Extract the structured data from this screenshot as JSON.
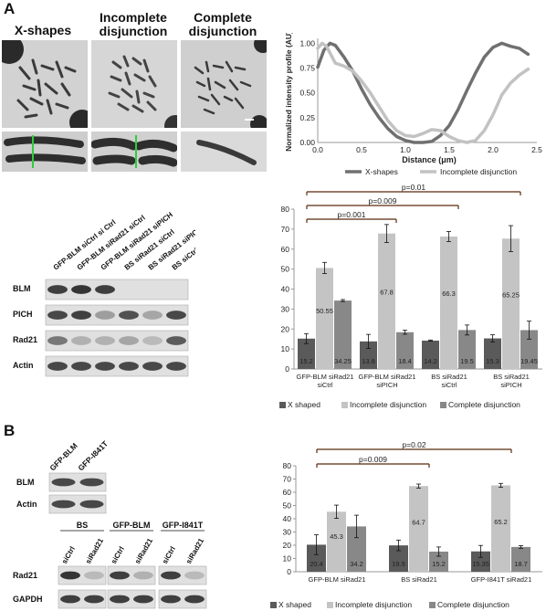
{
  "panel_a_letter": "A",
  "panel_b_letter": "B",
  "micrograph_titles": [
    "X-shapes",
    "Incomplete disjunction",
    "Complete disjunction"
  ],
  "blot_a": {
    "lanes": [
      "GFP-BLM siCtrl si Ctrl",
      "GFP-BLM siRad21 siCtrl",
      "GFP-BLM siRad21 siPICH",
      "BS siRad21 siCtrl",
      "BS siRad21 siPICH",
      "BS siCtrl siCtrl"
    ],
    "rows": [
      "BLM",
      "PICH",
      "Rad21",
      "Actin"
    ]
  },
  "blot_b_top": {
    "lanes": [
      "GFP-BLM",
      "GFP-I841T"
    ],
    "rows": [
      "BLM",
      "Actin"
    ]
  },
  "blot_b_bottom": {
    "groups": [
      "BS",
      "GFP-BLM",
      "GFP-I841T"
    ],
    "lanes": [
      "siCtrl",
      "siRad21",
      "siCtrl",
      "siRad21",
      "siCtrl",
      "siRad21"
    ],
    "rows": [
      "Rad21",
      "GAPDH"
    ]
  },
  "colors": {
    "x_shaped": "#5a5a5a",
    "incomplete": "#c4c4c4",
    "complete": "#888888",
    "bracket": "#5b2a0f"
  },
  "chart_data": [
    {
      "type": "line",
      "xlabel": "Distance (μm)",
      "ylabel": "Normalized intensity profile (AU)",
      "xlim": [
        0,
        2.5
      ],
      "ylim": [
        0,
        1.05
      ],
      "xticks": [
        "0.0",
        "0.5",
        "1.0",
        "1.5",
        "2.0",
        "2.5"
      ],
      "yticks": [
        "0.00",
        "0.25",
        "0.50",
        "0.75",
        "1.00"
      ],
      "legend_position": "bottom",
      "series": [
        {
          "name": "X-shapes",
          "color": "#707070",
          "x": [
            0,
            0.07,
            0.14,
            0.2,
            0.3,
            0.4,
            0.5,
            0.6,
            0.7,
            0.8,
            0.9,
            1.0,
            1.1,
            1.2,
            1.3,
            1.4,
            1.5,
            1.6,
            1.7,
            1.8,
            1.9,
            2.0,
            2.1,
            2.2,
            2.3,
            2.4
          ],
          "y": [
            0.76,
            0.93,
            1.0,
            0.98,
            0.86,
            0.72,
            0.54,
            0.38,
            0.25,
            0.14,
            0.06,
            0.02,
            0.0,
            0.0,
            0.01,
            0.07,
            0.17,
            0.33,
            0.52,
            0.7,
            0.86,
            0.96,
            1.0,
            0.97,
            0.95,
            0.89
          ]
        },
        {
          "name": "Incomplete disjunction",
          "color": "#c2c2c2",
          "x": [
            0,
            0.05,
            0.1,
            0.2,
            0.3,
            0.4,
            0.5,
            0.6,
            0.7,
            0.8,
            0.9,
            1.0,
            1.1,
            1.2,
            1.3,
            1.4,
            1.5,
            1.6,
            1.7,
            1.8,
            1.9,
            2.0,
            2.1,
            2.2,
            2.3,
            2.4
          ],
          "y": [
            0.95,
            1.0,
            0.97,
            0.8,
            0.77,
            0.72,
            0.62,
            0.5,
            0.36,
            0.22,
            0.12,
            0.07,
            0.06,
            0.09,
            0.13,
            0.12,
            0.06,
            0.02,
            0.0,
            0.02,
            0.12,
            0.28,
            0.48,
            0.6,
            0.68,
            0.74
          ]
        }
      ]
    },
    {
      "type": "bar",
      "ylim": [
        0,
        80
      ],
      "yticks": [
        "0",
        "10",
        "20",
        "30",
        "40",
        "50",
        "60",
        "70",
        "80"
      ],
      "categories": [
        "GFP-BLM siRad21 siCtrl",
        "GFP-BLM siRad21 siPICH",
        "BS siRad21 siCtrl",
        "BS siRad21 siPICH"
      ],
      "series": [
        {
          "name": "X shaped",
          "values": [
            15.2,
            13.8,
            14.2,
            15.3
          ],
          "errors": [
            2.5,
            3.5,
            0.3,
            1.8
          ]
        },
        {
          "name": "Incomplete disjunction",
          "values": [
            50.55,
            67.8,
            66.3,
            65.25
          ],
          "errors": [
            2.8,
            4.5,
            2.5,
            6.5
          ]
        },
        {
          "name": "Complete disjunction",
          "values": [
            34.25,
            18.4,
            19.5,
            19.45
          ],
          "errors": [
            0.5,
            1.0,
            2.5,
            4.5
          ]
        }
      ],
      "data_labels": [
        [
          "15.2",
          "13.8",
          "14.2",
          "15.3"
        ],
        [
          "50.55",
          "67.8",
          "66.3",
          "65.25"
        ],
        [
          "34.25",
          "18.4",
          "19.5",
          "19.45"
        ]
      ],
      "significance": [
        {
          "label": "p=0.01",
          "from": 0,
          "to": 3
        },
        {
          "label": "p=0.009",
          "from": 0,
          "to": 2
        },
        {
          "label": "p=0.001",
          "from": 0,
          "to": 1
        }
      ],
      "legend_position": "bottom"
    },
    {
      "type": "bar",
      "ylim": [
        0,
        80
      ],
      "yticks": [
        "0",
        "10",
        "20",
        "30",
        "40",
        "50",
        "60",
        "70",
        "80"
      ],
      "categories": [
        "GFP-BLM siRad21",
        "BS siRad21",
        "GFP-I841T siRad21"
      ],
      "series": [
        {
          "name": "X shaped",
          "values": [
            20.4,
            19.9,
            15.35
          ],
          "errors": [
            7.5,
            4.0,
            4.5
          ]
        },
        {
          "name": "Incomplete disjunction",
          "values": [
            45.3,
            64.7,
            65.2
          ],
          "errors": [
            5.0,
            1.5,
            1.5
          ]
        },
        {
          "name": "Complete disjunction",
          "values": [
            34.2,
            15.2,
            18.7
          ],
          "errors": [
            8.5,
            3.5,
            1.0
          ]
        }
      ],
      "data_labels": [
        [
          "20.4",
          "19.9",
          "15.35"
        ],
        [
          "45.3",
          "64.7",
          "65.2"
        ],
        [
          "34.2",
          "15.2",
          "18.7"
        ]
      ],
      "significance": [
        {
          "label": "p=0.02",
          "from": 0,
          "to": 2
        },
        {
          "label": "p=0.009",
          "from": 0,
          "to": 1
        }
      ],
      "legend_position": "bottom"
    }
  ]
}
